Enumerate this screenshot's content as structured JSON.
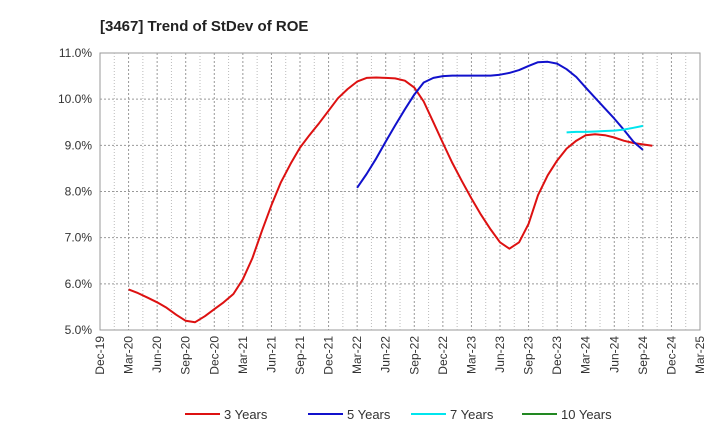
{
  "chart_data": {
    "type": "line",
    "title": "[3467]  Trend of StDev of ROE",
    "xlabel": "",
    "ylabel": "",
    "x_tick_labels": [
      "Dec-19",
      "Mar-20",
      "Jun-20",
      "Sep-20",
      "Dec-20",
      "Mar-21",
      "Jun-21",
      "Sep-21",
      "Dec-21",
      "Mar-22",
      "Jun-22",
      "Sep-22",
      "Dec-22",
      "Mar-23",
      "Jun-23",
      "Sep-23",
      "Dec-23",
      "Mar-24",
      "Jun-24",
      "Sep-24",
      "Dec-24",
      "Mar-25"
    ],
    "y_tick_labels": [
      "5.0%",
      "6.0%",
      "7.0%",
      "8.0%",
      "9.0%",
      "10.0%",
      "11.0%"
    ],
    "ylim": [
      5.0,
      11.0
    ],
    "grid": true,
    "legend_position": "bottom",
    "series": [
      {
        "name": "3 Years",
        "color": "#dd1111",
        "points": [
          [
            1,
            5.88
          ],
          [
            1.33,
            5.8
          ],
          [
            1.67,
            5.7
          ],
          [
            2,
            5.6
          ],
          [
            2.33,
            5.48
          ],
          [
            2.67,
            5.33
          ],
          [
            3,
            5.2
          ],
          [
            3.33,
            5.17
          ],
          [
            3.67,
            5.3
          ],
          [
            4,
            5.45
          ],
          [
            4.33,
            5.6
          ],
          [
            4.67,
            5.78
          ],
          [
            5,
            6.1
          ],
          [
            5.33,
            6.55
          ],
          [
            5.67,
            7.15
          ],
          [
            6,
            7.7
          ],
          [
            6.33,
            8.2
          ],
          [
            6.67,
            8.6
          ],
          [
            7,
            8.95
          ],
          [
            7.33,
            9.22
          ],
          [
            7.67,
            9.48
          ],
          [
            8,
            9.75
          ],
          [
            8.33,
            10.02
          ],
          [
            8.67,
            10.22
          ],
          [
            9,
            10.38
          ],
          [
            9.33,
            10.46
          ],
          [
            9.67,
            10.47
          ],
          [
            10,
            10.46
          ],
          [
            10.33,
            10.45
          ],
          [
            10.67,
            10.4
          ],
          [
            11,
            10.25
          ],
          [
            11.33,
            9.95
          ],
          [
            11.67,
            9.5
          ],
          [
            12,
            9.05
          ],
          [
            12.33,
            8.62
          ],
          [
            12.67,
            8.22
          ],
          [
            13,
            7.85
          ],
          [
            13.33,
            7.5
          ],
          [
            13.67,
            7.18
          ],
          [
            14,
            6.9
          ],
          [
            14.33,
            6.76
          ],
          [
            14.67,
            6.9
          ],
          [
            15,
            7.3
          ],
          [
            15.33,
            7.92
          ],
          [
            15.67,
            8.35
          ],
          [
            16,
            8.67
          ],
          [
            16.33,
            8.93
          ],
          [
            16.67,
            9.1
          ],
          [
            17,
            9.22
          ],
          [
            17.33,
            9.24
          ],
          [
            17.67,
            9.22
          ],
          [
            18,
            9.17
          ],
          [
            18.33,
            9.1
          ],
          [
            18.67,
            9.05
          ],
          [
            19,
            9.02
          ],
          [
            19.33,
            8.99
          ]
        ]
      },
      {
        "name": "5 Years",
        "color": "#1111cc",
        "points": [
          [
            9,
            8.08
          ],
          [
            9.33,
            8.38
          ],
          [
            9.67,
            8.72
          ],
          [
            10,
            9.08
          ],
          [
            10.33,
            9.43
          ],
          [
            10.67,
            9.78
          ],
          [
            11,
            10.1
          ],
          [
            11.33,
            10.36
          ],
          [
            11.67,
            10.46
          ],
          [
            12,
            10.5
          ],
          [
            12.33,
            10.51
          ],
          [
            12.67,
            10.51
          ],
          [
            13,
            10.51
          ],
          [
            13.33,
            10.51
          ],
          [
            13.67,
            10.51
          ],
          [
            14,
            10.53
          ],
          [
            14.33,
            10.57
          ],
          [
            14.67,
            10.63
          ],
          [
            15,
            10.72
          ],
          [
            15.33,
            10.8
          ],
          [
            15.67,
            10.81
          ],
          [
            16,
            10.77
          ],
          [
            16.33,
            10.65
          ],
          [
            16.67,
            10.48
          ],
          [
            17,
            10.25
          ],
          [
            17.33,
            10.03
          ],
          [
            17.67,
            9.8
          ],
          [
            18,
            9.58
          ],
          [
            18.33,
            9.34
          ],
          [
            18.67,
            9.08
          ],
          [
            19,
            8.9
          ]
        ]
      },
      {
        "name": "7 Years",
        "color": "#00e5ee",
        "points": [
          [
            16.33,
            9.28
          ],
          [
            16.67,
            9.29
          ],
          [
            17,
            9.29
          ],
          [
            17.33,
            9.3
          ],
          [
            17.67,
            9.31
          ],
          [
            18,
            9.32
          ],
          [
            18.33,
            9.34
          ],
          [
            18.67,
            9.38
          ],
          [
            19,
            9.42
          ]
        ]
      },
      {
        "name": "10 Years",
        "color": "#228822",
        "points": []
      }
    ]
  }
}
